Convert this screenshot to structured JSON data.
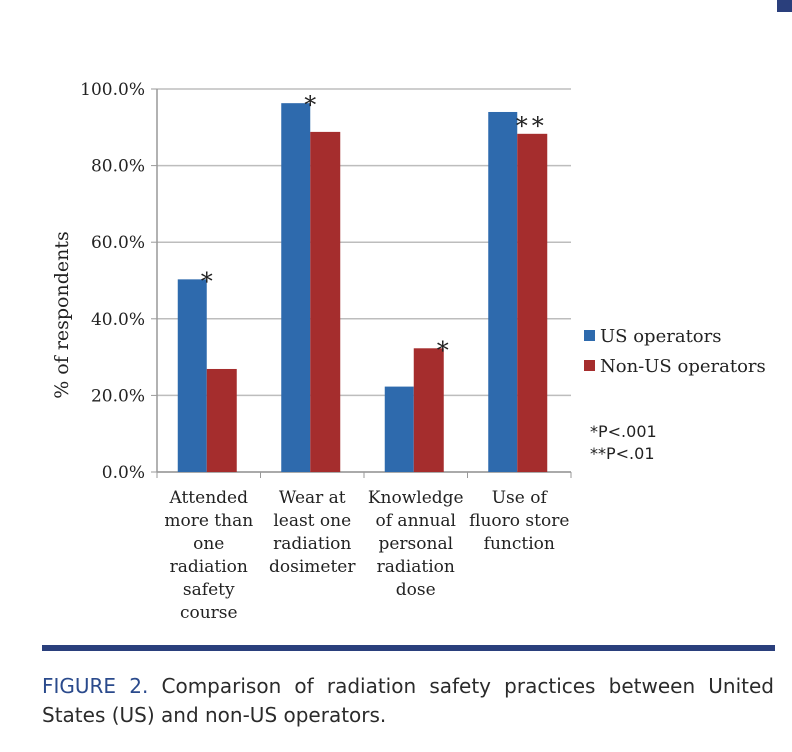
{
  "chart_data": {
    "type": "bar",
    "categories": [
      [
        "Attended",
        "more than",
        "one",
        "radiation",
        "safety",
        "course"
      ],
      [
        "Wear at",
        "least one",
        "radiation",
        "dosimeter"
      ],
      [
        "Knowledge",
        "of annual",
        "personal",
        "radiation",
        "dose"
      ],
      [
        "Use of",
        "fluoro store",
        "function"
      ]
    ],
    "series": [
      {
        "name": "US operators",
        "color": "#2e6aad",
        "values": [
          50.3,
          96.3,
          22.3,
          94.0
        ]
      },
      {
        "name": "Non-US operators",
        "color": "#a52d2d",
        "values": [
          26.9,
          88.8,
          32.3,
          88.3
        ]
      }
    ],
    "significance": [
      "*",
      "*",
      "*",
      "**"
    ],
    "ylabel": "% of respondents",
    "ylim": [
      0,
      100
    ],
    "yticks": [
      "0.0%",
      "20.0%",
      "40.0%",
      "60.0%",
      "80.0%",
      "100.0%"
    ],
    "grid": true,
    "legend": "right",
    "notes": [
      "*P<.001",
      "**P<.01"
    ]
  },
  "caption": {
    "label": "FIGURE 2.",
    "text": "Comparison of radiation safety practices between United States (US) and non-US operators."
  }
}
